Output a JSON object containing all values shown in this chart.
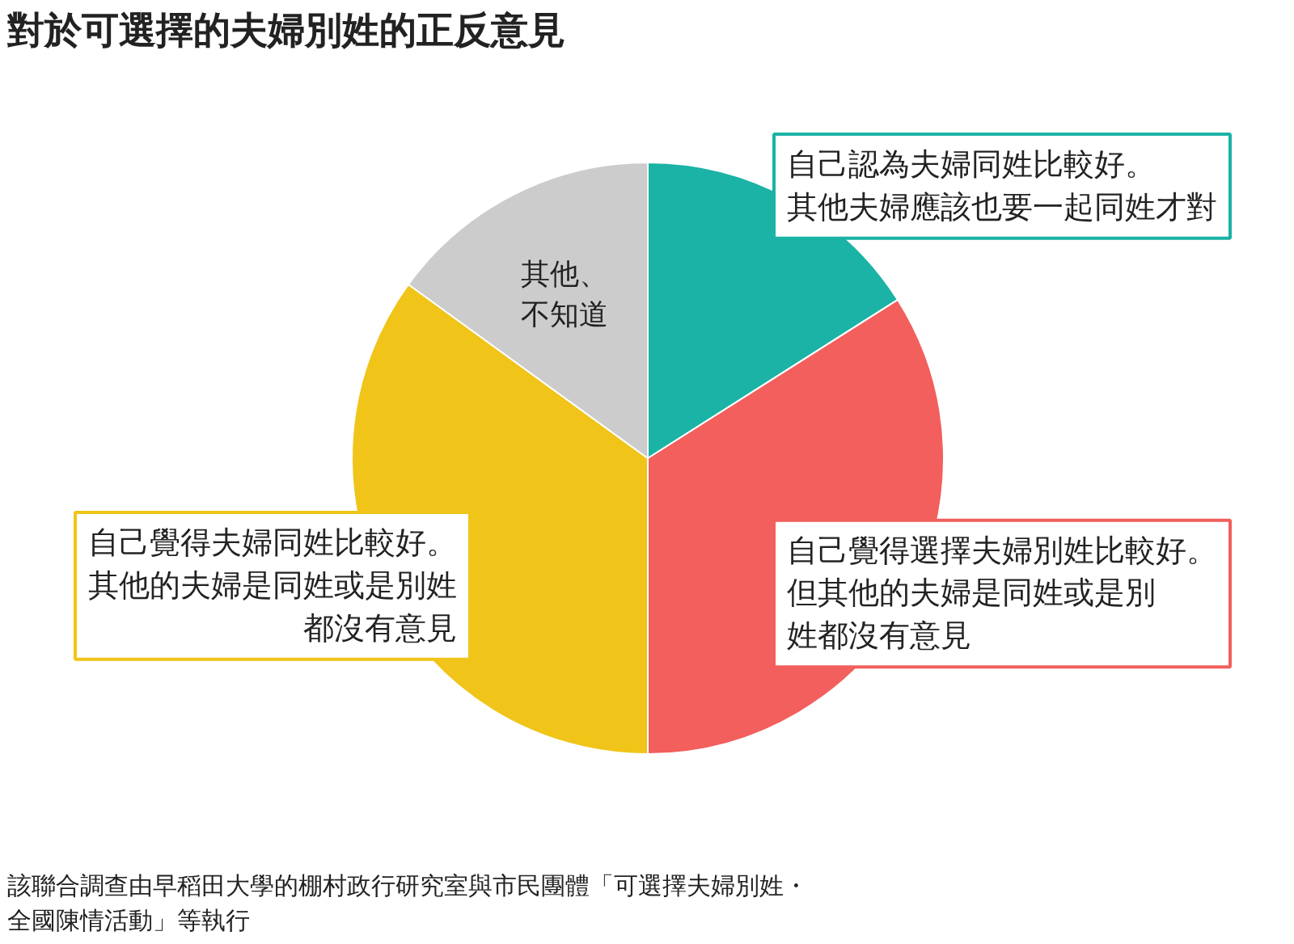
{
  "chart_data": {
    "type": "pie",
    "title": "對於可選擇的夫婦別姓的正反意見",
    "categories": [
      "自己認為夫婦同姓比較好。其他夫婦應該也要一起同姓才對",
      "自己覺得選擇夫婦別姓比較好。但其他的夫婦是同姓或是別姓都沒有意見",
      "自己覺得夫婦同姓比較好。其他的夫婦是同姓或是別姓都沒有意見",
      "其他、不知道"
    ],
    "values": [
      16,
      34,
      35,
      15
    ],
    "colors": [
      "#1bb3a5",
      "#f25f5c",
      "#f0c419",
      "#cccccc"
    ],
    "annotations": [
      "該聯合調查由早稻田大學的棚村政行研究室與市民團體「可選擇夫婦別姓・全國陳情活動」等執行"
    ]
  }
}
